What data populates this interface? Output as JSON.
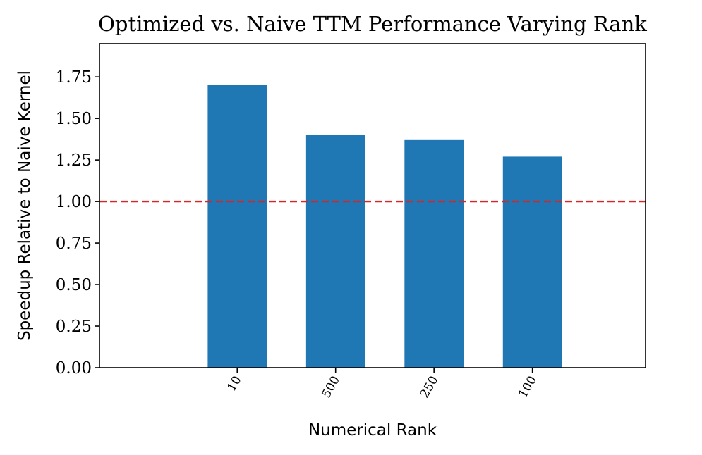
{
  "chart_data": {
    "type": "bar",
    "title": "Optimized vs. Naive TTM Performance Varying Rank",
    "xlabel": "Numerical Rank",
    "ylabel": "Speedup Relative to Naive Kernel",
    "categories": [
      "10",
      "500",
      "250",
      "100"
    ],
    "values": [
      1.7,
      1.4,
      1.37,
      1.27
    ],
    "ylim": [
      0,
      1.95
    ],
    "yticks": [
      "0.00",
      "0.25",
      "0.50",
      "0.75",
      "1.00",
      "1.25",
      "1.50",
      "1.75"
    ],
    "reference_line": {
      "y": 1.0,
      "style": "dashed"
    },
    "grid": false,
    "colors": {
      "bar": "#1f77b4",
      "reference_line": "#d62728",
      "axes": "#000000"
    }
  }
}
